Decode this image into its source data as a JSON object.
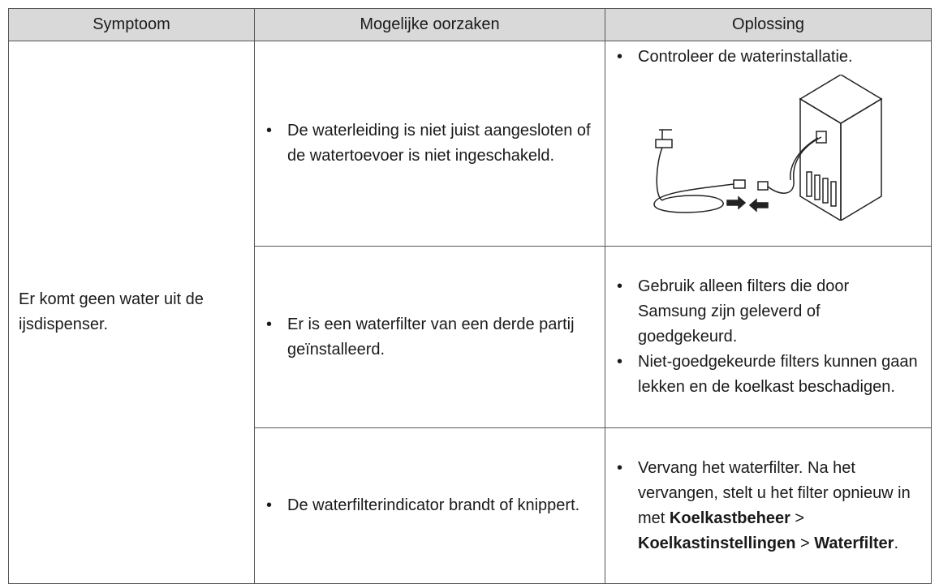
{
  "table": {
    "header": [
      "Symptoom",
      "Mogelijke oorzaken",
      "Oplossing"
    ],
    "symptom": "Er komt geen water uit de ijsdispenser.",
    "rows": [
      {
        "cause": "De waterleiding is niet juist aangesloten of de watertoevoer is niet ingeschakeld.",
        "solution": [
          "Controleer de waterinstallatie."
        ]
      },
      {
        "cause": "Er is een waterfilter van een derde partij geïnstalleerd.",
        "solution": [
          "Gebruik alleen filters die door Samsung zijn geleverd of goedgekeurd.",
          "Niet-goedgekeurde filters kunnen gaan lekken en de koelkast beschadigen."
        ]
      },
      {
        "cause": "De waterfilterindicator brandt of knippert.",
        "solution_segments": [
          {
            "text": "Vervang het waterfilter. Na het vervangen, stelt u het filter opnieuw in met ",
            "bold": false
          },
          {
            "text": "Koelkastbeheer",
            "bold": true
          },
          {
            "text": " > ",
            "bold": false
          },
          {
            "text": "Koelkastinstellingen",
            "bold": true
          },
          {
            "text": " > ",
            "bold": false
          },
          {
            "text": "Waterfilter",
            "bold": true
          },
          {
            "text": ".",
            "bold": false
          }
        ]
      }
    ]
  }
}
